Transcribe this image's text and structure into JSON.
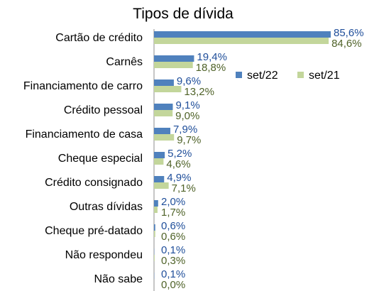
{
  "chart_data": {
    "type": "bar",
    "orientation": "horizontal",
    "title": "Tipos de dívida",
    "categories": [
      "Cartão de crédito",
      "Carnês",
      "Financiamento de carro",
      "Crédito pessoal",
      "Financiamento de casa",
      "Cheque especial",
      "Crédito consignado",
      "Outras dívidas",
      "Cheque pré-datado",
      "Não respondeu",
      "Não sabe"
    ],
    "series": [
      {
        "name": "set/22",
        "color": "#4f81bd",
        "label_color": "#1f4e9a",
        "values": [
          85.6,
          19.4,
          9.6,
          9.1,
          7.9,
          5.2,
          4.9,
          2.0,
          0.6,
          0.1,
          0.1
        ],
        "labels": [
          "85,6%",
          "19,4%",
          "9,6%",
          "9,1%",
          "7,9%",
          "5,2%",
          "4,9%",
          "2,0%",
          "0,6%",
          "0,1%",
          "0,1%"
        ]
      },
      {
        "name": "set/21",
        "color": "#c3d69b",
        "label_color": "#4f6228",
        "values": [
          84.6,
          18.8,
          13.2,
          9.0,
          9.7,
          4.6,
          7.1,
          1.7,
          0.6,
          0.3,
          0.0
        ],
        "labels": [
          "84,6%",
          "18,8%",
          "13,2%",
          "9,0%",
          "9,7%",
          "4,6%",
          "7,1%",
          "1,7%",
          "0,6%",
          "0,3%",
          "0,0%"
        ]
      }
    ],
    "xlim": [
      0,
      85.6
    ],
    "legend_position": "right",
    "grid": false
  }
}
